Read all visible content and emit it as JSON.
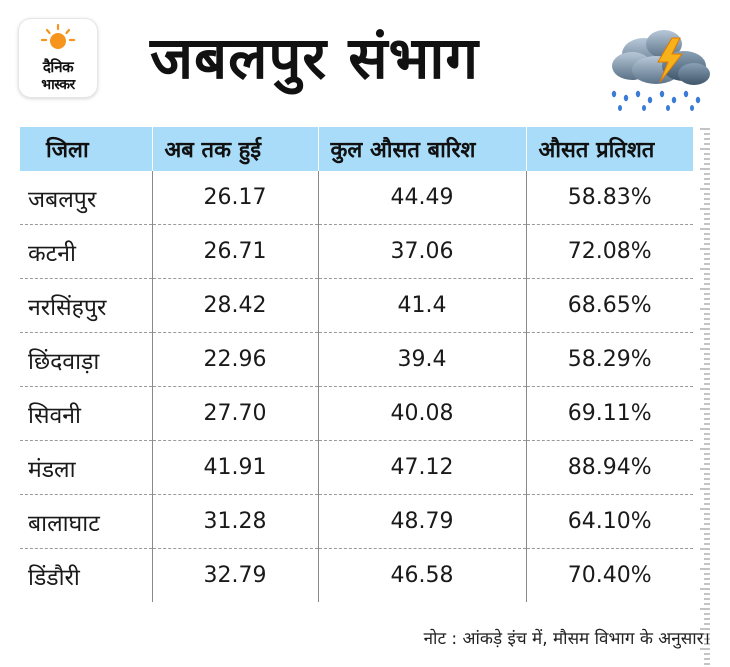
{
  "logo": {
    "line1": "दैनिक",
    "line2": "भास्कर",
    "sun_color": "#f7941d"
  },
  "title": "जबलपुर संभाग",
  "chart_data": {
    "type": "table",
    "columns": [
      "जिला",
      "अब तक हुई",
      "कुल औसत बारिश",
      "औसत प्रतिशत"
    ],
    "rows": [
      [
        "जबलपुर",
        "26.17",
        "44.49",
        "58.83%"
      ],
      [
        "कटनी",
        "26.71",
        "37.06",
        "72.08%"
      ],
      [
        "नरसिंहपुर",
        "28.42",
        "41.4",
        "68.65%"
      ],
      [
        "छिंदवाड़ा",
        "22.96",
        "39.4",
        "58.29%"
      ],
      [
        "सिवनी",
        "27.70",
        "40.08",
        "69.11%"
      ],
      [
        "मंडला",
        "41.91",
        "47.12",
        "88.94%"
      ],
      [
        "बालाघाट",
        "31.28",
        "48.79",
        "64.10%"
      ],
      [
        "डिंडौरी",
        "32.79",
        "46.58",
        "70.40%"
      ]
    ],
    "header_color": "#a9dcf8"
  },
  "note": "नोट : आंकड़े इंच में, मौसम विभाग के अनुसार।",
  "icons": {
    "weather": "storm-cloud-rain-icon",
    "logo": "dainik-bhaskar-logo"
  }
}
